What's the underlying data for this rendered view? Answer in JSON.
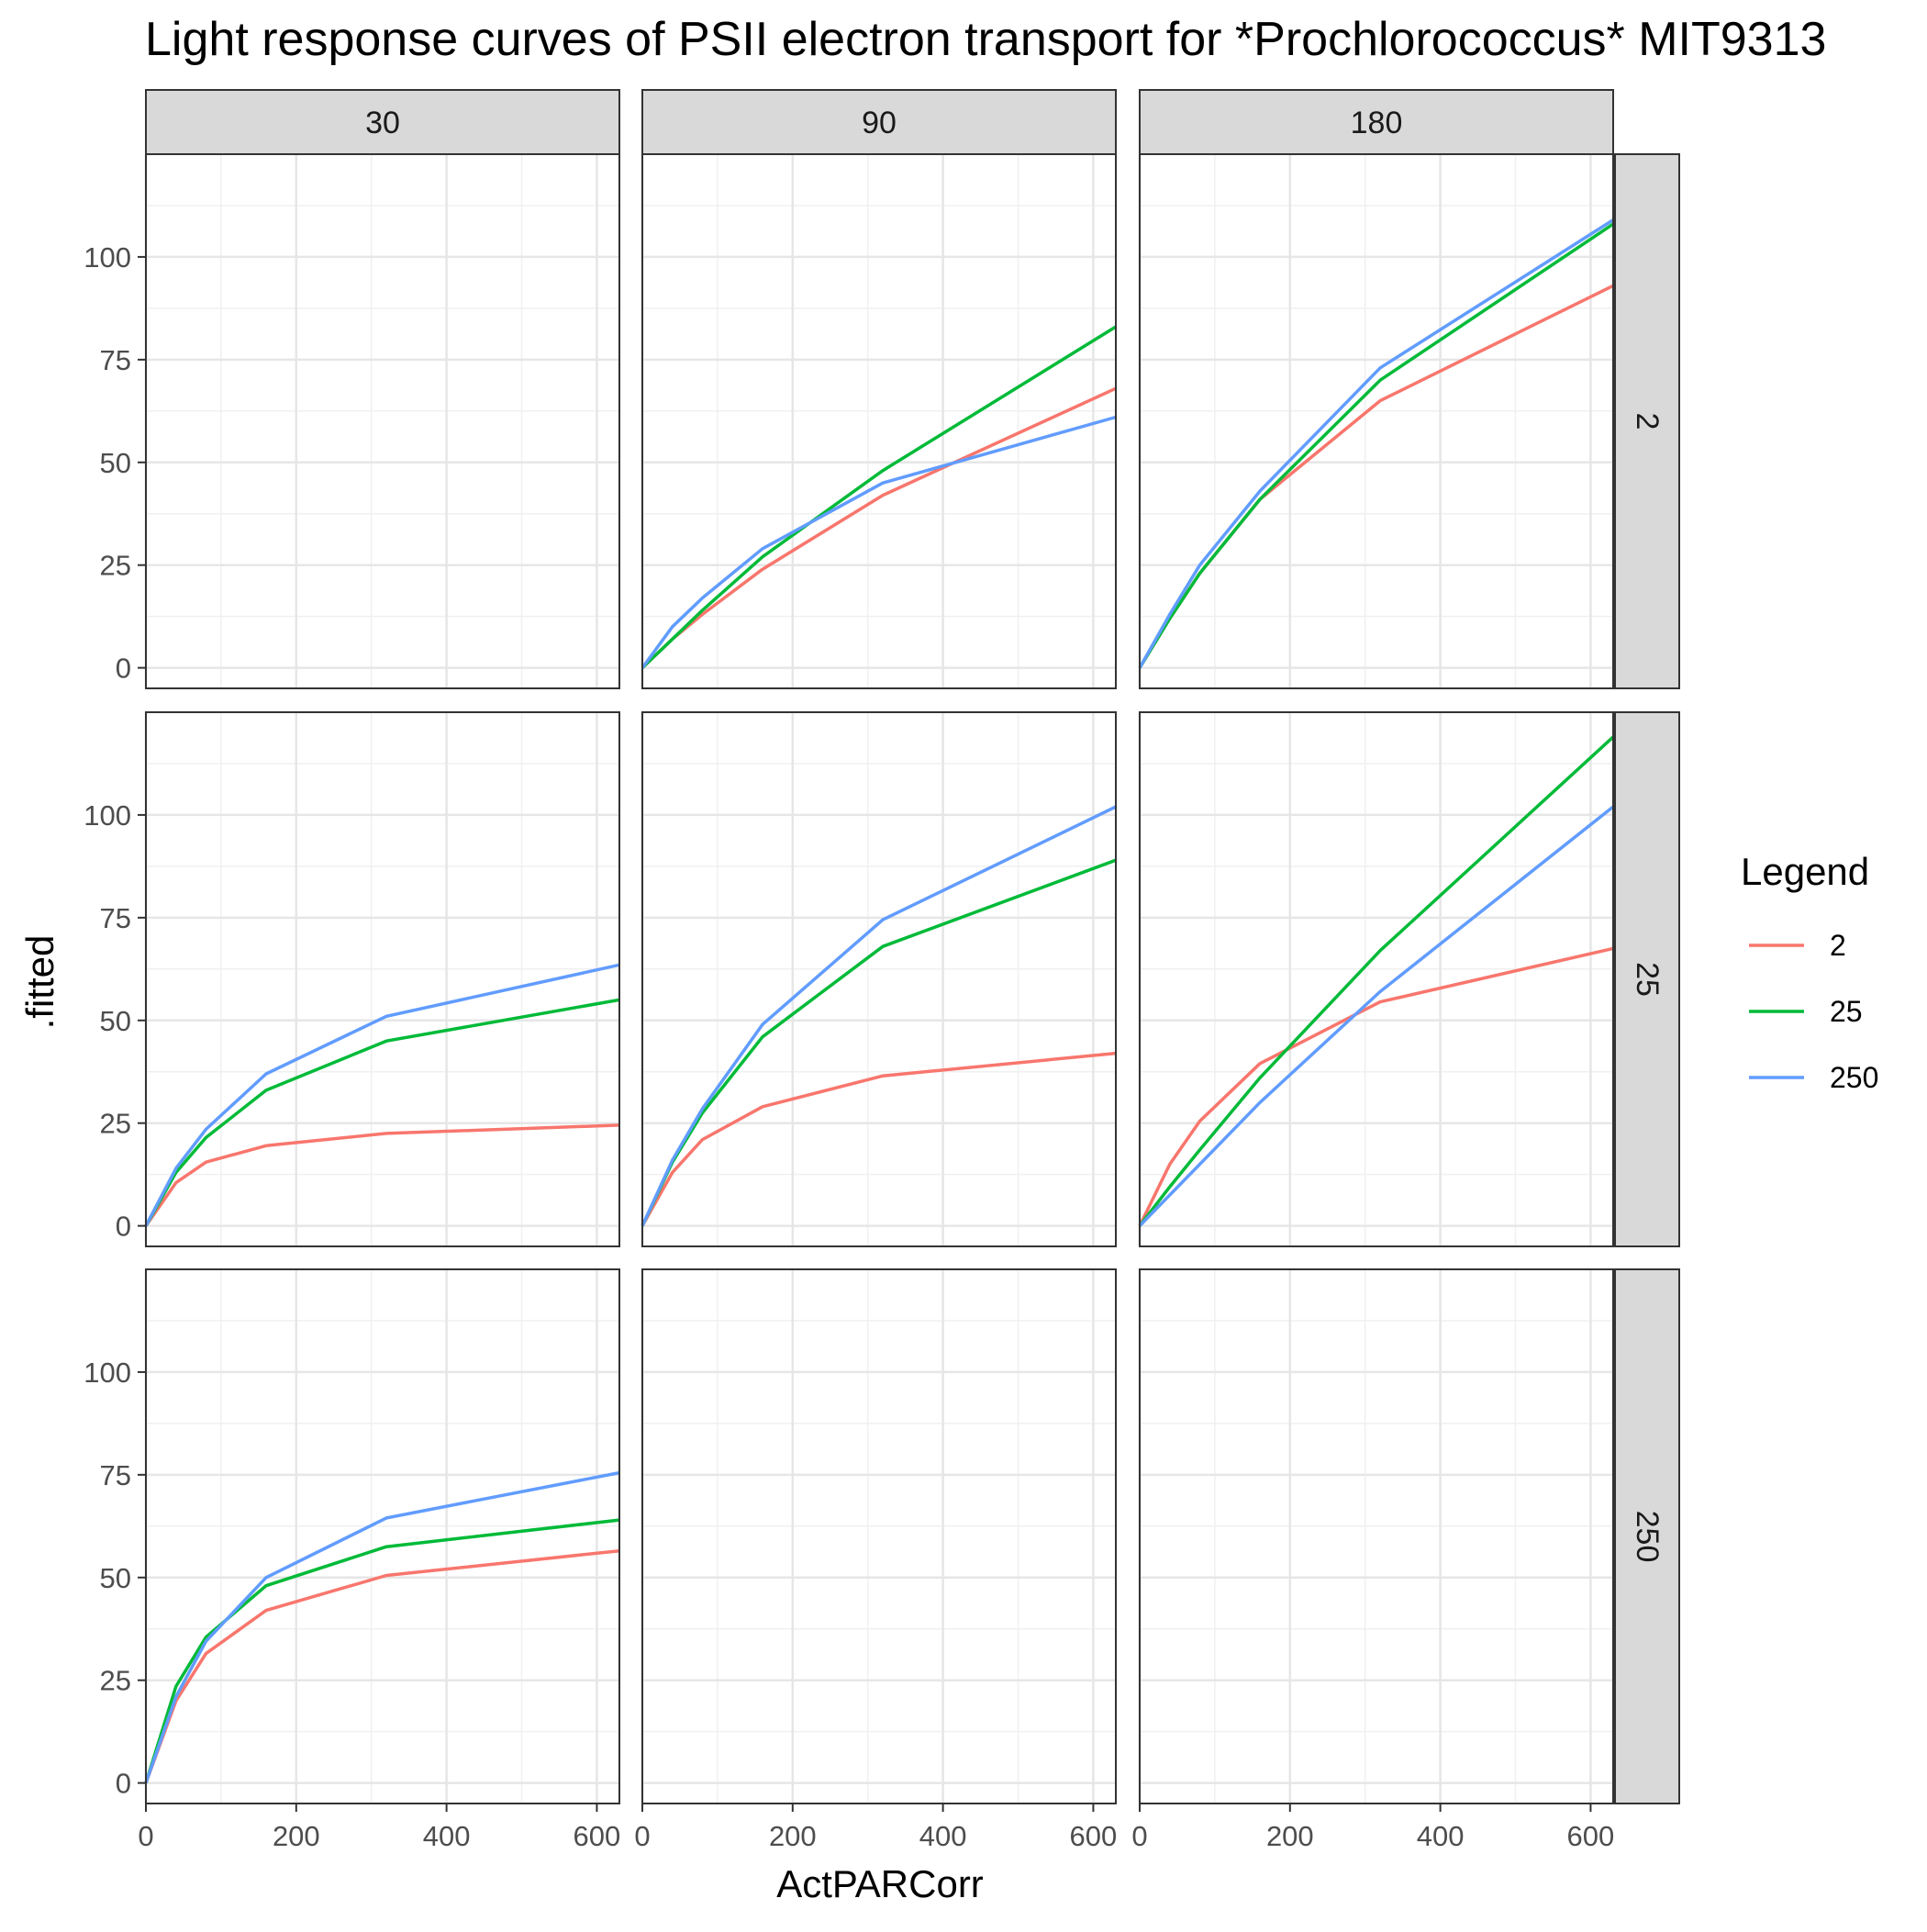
{
  "chart_data": {
    "type": "line",
    "title": "Light response curves of PSII electron transport for *Prochlorococcus* MIT9313",
    "xlabel": "ActPARCorr",
    "ylabel": ".fitted",
    "xlim": [
      0,
      630
    ],
    "ylim": [
      -5,
      125
    ],
    "x_ticks": [
      0,
      200,
      400,
      600
    ],
    "y_ticks": [
      0,
      25,
      50,
      75,
      100
    ],
    "x_tick_labels": [
      "0",
      "200",
      "400",
      "600"
    ],
    "y_tick_labels": [
      "0",
      "25",
      "50",
      "75",
      "100"
    ],
    "grid": true,
    "legend": {
      "title": "Legend",
      "position": "right",
      "entries": [
        "2",
        "25",
        "250"
      ]
    },
    "column_facets": [
      "30",
      "90",
      "180"
    ],
    "row_facets": [
      "2",
      "25",
      "250"
    ],
    "series_colors": {
      "2": "#F8766D",
      "25": "#00BA38",
      "250": "#619CFF"
    },
    "panels": [
      {
        "col": "30",
        "row": "2",
        "series": []
      },
      {
        "col": "90",
        "row": "2",
        "series": [
          {
            "name": "2",
            "x": [
              0,
              40,
              80,
              160,
              320,
              630
            ],
            "y": [
              0,
              7,
              13,
              24,
              42,
              68
            ]
          },
          {
            "name": "25",
            "x": [
              0,
              40,
              80,
              160,
              320,
              630
            ],
            "y": [
              0,
              7,
              14,
              27,
              48,
              83
            ]
          },
          {
            "name": "250",
            "x": [
              0,
              40,
              80,
              160,
              320,
              630
            ],
            "y": [
              0,
              10,
              17,
              29,
              45,
              61
            ]
          }
        ]
      },
      {
        "col": "180",
        "row": "2",
        "series": [
          {
            "name": "2",
            "x": [
              0,
              40,
              80,
              160,
              320,
              630
            ],
            "y": [
              0,
              12,
              23,
              41,
              65,
              93
            ]
          },
          {
            "name": "25",
            "x": [
              0,
              40,
              80,
              160,
              320,
              630
            ],
            "y": [
              0,
              12,
              23,
              41,
              70,
              108
            ]
          },
          {
            "name": "250",
            "x": [
              0,
              40,
              80,
              160,
              320,
              630
            ],
            "y": [
              0,
              13,
              25,
              43,
              73,
              109
            ]
          }
        ]
      },
      {
        "col": "30",
        "row": "25",
        "series": [
          {
            "name": "2",
            "x": [
              0,
              40,
              80,
              160,
              320,
              630
            ],
            "y": [
              0,
              10.5,
              15.5,
              19.5,
              22.5,
              24.5
            ]
          },
          {
            "name": "25",
            "x": [
              0,
              40,
              80,
              160,
              320,
              630
            ],
            "y": [
              0,
              13,
              21.5,
              33,
              45,
              55
            ]
          },
          {
            "name": "250",
            "x": [
              0,
              40,
              80,
              160,
              320,
              630
            ],
            "y": [
              0,
              14,
              23.5,
              37,
              51,
              63.5
            ]
          }
        ]
      },
      {
        "col": "90",
        "row": "25",
        "series": [
          {
            "name": "2",
            "x": [
              0,
              40,
              80,
              160,
              320,
              630
            ],
            "y": [
              0,
              13,
              21,
              29,
              36.5,
              42
            ]
          },
          {
            "name": "25",
            "x": [
              0,
              40,
              80,
              160,
              320,
              630
            ],
            "y": [
              0,
              15.5,
              27.5,
              46,
              68,
              89
            ]
          },
          {
            "name": "250",
            "x": [
              0,
              40,
              80,
              160,
              320,
              630
            ],
            "y": [
              0,
              16,
              28.5,
              49,
              74.5,
              102
            ]
          }
        ]
      },
      {
        "col": "180",
        "row": "25",
        "series": [
          {
            "name": "2",
            "x": [
              0,
              40,
              80,
              160,
              320,
              630
            ],
            "y": [
              0,
              15,
              25.5,
              39.5,
              54.5,
              67.5
            ]
          },
          {
            "name": "25",
            "x": [
              0,
              40,
              80,
              160,
              320,
              630
            ],
            "y": [
              0,
              9.5,
              18.5,
              36,
              67,
              119
            ]
          },
          {
            "name": "250",
            "x": [
              0,
              40,
              80,
              160,
              320,
              630
            ],
            "y": [
              0,
              7.5,
              15,
              30,
              57,
              102
            ]
          }
        ]
      },
      {
        "col": "30",
        "row": "250",
        "series": [
          {
            "name": "2",
            "x": [
              0,
              40,
              80,
              160,
              320,
              630
            ],
            "y": [
              0,
              20,
              31.5,
              42,
              50.5,
              56.5
            ]
          },
          {
            "name": "25",
            "x": [
              0,
              40,
              80,
              160,
              320,
              630
            ],
            "y": [
              0,
              23.5,
              35.5,
              48,
              57.5,
              64
            ]
          },
          {
            "name": "250",
            "x": [
              0,
              40,
              80,
              160,
              320,
              630
            ],
            "y": [
              0,
              21,
              34.5,
              50,
              64.5,
              75.5
            ]
          }
        ]
      },
      {
        "col": "90",
        "row": "250",
        "series": []
      },
      {
        "col": "180",
        "row": "250",
        "series": []
      }
    ]
  }
}
